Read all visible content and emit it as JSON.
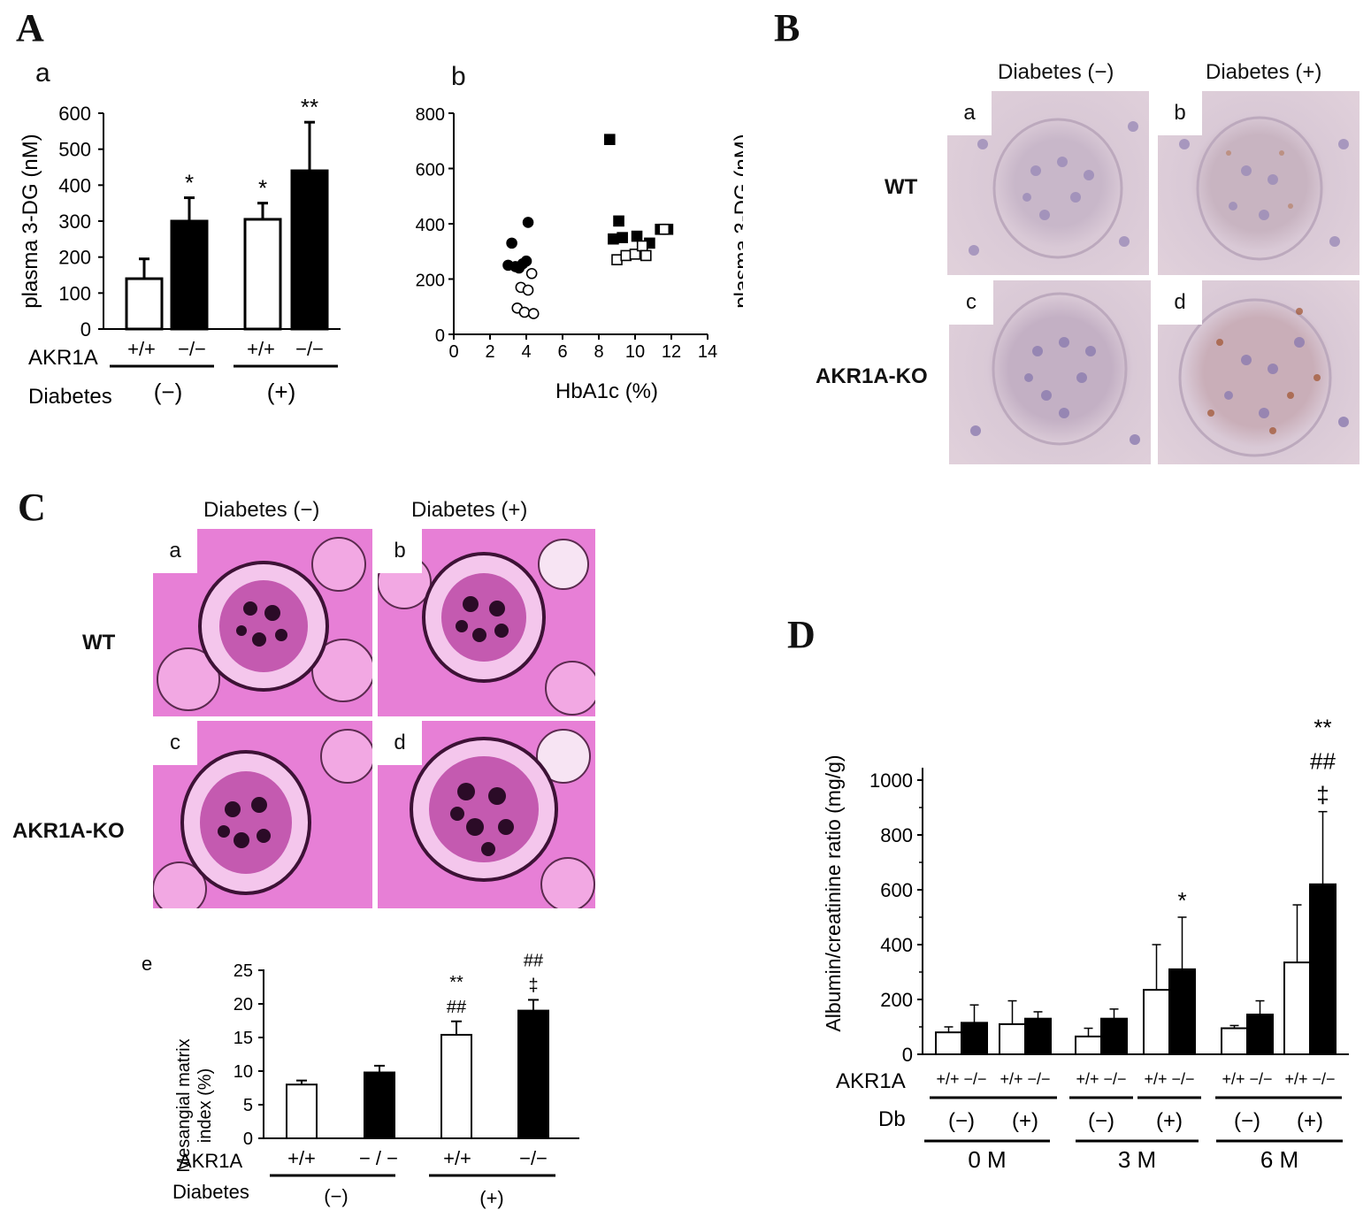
{
  "panels": {
    "A": "A",
    "B": "B",
    "C": "C",
    "D": "D"
  },
  "panelA": {
    "a": {
      "sublabel": "a",
      "ylabel": "plasma 3-DG (nM)",
      "row_akr": "AKR1A",
      "row_diab": "Diabetes",
      "akr_labels": [
        "+/+",
        "−/−",
        "+/+",
        "−/−"
      ],
      "diab_labels": [
        "(−)",
        "(+)"
      ],
      "yticks": [
        "0",
        "100",
        "200",
        "300",
        "400",
        "500",
        "600"
      ]
    },
    "b": {
      "sublabel": "b",
      "ylabel": "plasma 3-DG (nM)",
      "xlabel": "HbA1c (%)",
      "xticks": [
        "0",
        "2",
        "4",
        "6",
        "8",
        "10",
        "12",
        "14"
      ],
      "yticks": [
        "0",
        "200",
        "400",
        "600",
        "800"
      ]
    }
  },
  "panelB": {
    "col_labels": [
      "Diabetes (−)",
      "Diabetes (+)"
    ],
    "row_labels": [
      "WT",
      "AKR1A-KO"
    ],
    "tags": [
      "a",
      "b",
      "c",
      "d"
    ]
  },
  "panelC": {
    "col_labels": [
      "Diabetes (−)",
      "Diabetes (+)"
    ],
    "row_labels": [
      "WT",
      "AKR1A-KO"
    ],
    "tags": [
      "a",
      "b",
      "c",
      "d"
    ],
    "e": {
      "sublabel": "e",
      "ylabel1": "Mesangial matrix",
      "ylabel2": "index (%)",
      "row_akr": "AKR1A",
      "row_diab": "Diabetes",
      "akr_labels": [
        "+/+",
        "− / −",
        "+/+",
        "−/−"
      ],
      "diab_labels": [
        "(−)",
        "(+)"
      ],
      "yticks": [
        "0",
        "5",
        "10",
        "15",
        "20",
        "25"
      ]
    }
  },
  "panelD": {
    "ylabel": "Albumin/creatinine ratio (mg/g)",
    "row_akr": "AKR1A",
    "row_db": "Db",
    "db_labels": [
      "(−)",
      "(+)",
      "(−)",
      "(+)",
      "(−)",
      "(+)"
    ],
    "time_labels": [
      "0 M",
      "3 M",
      "6 M"
    ],
    "yticks": [
      "0",
      "200",
      "400",
      "600",
      "800",
      "1000"
    ],
    "pair_label": "+/+ −/−"
  },
  "chart_data": [
    {
      "id": "A-a",
      "type": "bar",
      "title": "",
      "ylabel": "plasma 3-DG (nM)",
      "ylim": [
        0,
        600
      ],
      "categories": [
        "+/+ (−)",
        "−/− (−)",
        "+/+ (+)",
        "−/− (+)"
      ],
      "values": [
        140,
        300,
        305,
        440
      ],
      "errors": [
        55,
        65,
        45,
        135
      ],
      "fills": [
        "white",
        "black",
        "white",
        "black"
      ],
      "annotations": [
        "",
        "*",
        "*",
        "**"
      ]
    },
    {
      "id": "A-b",
      "type": "scatter",
      "xlabel": "HbA1c (%)",
      "ylabel": "plasma 3-DG (nM)",
      "xlim": [
        0,
        14
      ],
      "ylim": [
        0,
        800
      ],
      "series": [
        {
          "marker": "filled-circle",
          "points": [
            [
              3.0,
              250
            ],
            [
              3.2,
              330
            ],
            [
              3.4,
              245
            ],
            [
              3.6,
              240
            ],
            [
              3.8,
              255
            ],
            [
              4.0,
              265
            ],
            [
              4.1,
              405
            ]
          ]
        },
        {
          "marker": "open-circle",
          "points": [
            [
              3.7,
              170
            ],
            [
              4.1,
              160
            ],
            [
              4.3,
              220
            ],
            [
              3.5,
              95
            ],
            [
              3.9,
              80
            ],
            [
              4.4,
              75
            ]
          ]
        },
        {
          "marker": "filled-square",
          "points": [
            [
              8.6,
              705
            ],
            [
              8.8,
              345
            ],
            [
              9.1,
              410
            ],
            [
              9.3,
              350
            ],
            [
              10.1,
              355
            ],
            [
              10.8,
              330
            ],
            [
              11.4,
              380
            ],
            [
              11.8,
              380
            ]
          ]
        },
        {
          "marker": "open-square",
          "points": [
            [
              9.0,
              270
            ],
            [
              9.5,
              285
            ],
            [
              10.0,
              290
            ],
            [
              10.4,
              320
            ],
            [
              10.6,
              285
            ],
            [
              11.6,
              380
            ]
          ]
        }
      ]
    },
    {
      "id": "C-e",
      "type": "bar",
      "ylabel": "Mesangial matrix index (%)",
      "ylim": [
        0,
        25
      ],
      "categories": [
        "+/+ (−)",
        "−/− (−)",
        "+/+ (+)",
        "−/− (+)"
      ],
      "values": [
        8.0,
        9.8,
        15.4,
        19.0
      ],
      "errors": [
        0.6,
        1.0,
        2.0,
        1.6
      ],
      "fills": [
        "white",
        "black",
        "white",
        "black"
      ],
      "annotations": [
        [],
        [],
        [
          "**",
          "##"
        ],
        [
          "**",
          "##",
          "‡"
        ]
      ]
    },
    {
      "id": "D",
      "type": "bar",
      "ylabel": "Albumin/creatinine ratio (mg/g)",
      "ylim": [
        0,
        1000
      ],
      "groups": [
        {
          "time": "0 M",
          "db": "(−)",
          "values": [
            80,
            115
          ],
          "errors": [
            20,
            65
          ],
          "annotations": []
        },
        {
          "time": "0 M",
          "db": "(+)",
          "values": [
            110,
            130
          ],
          "errors": [
            85,
            25
          ],
          "annotations": []
        },
        {
          "time": "3 M",
          "db": "(−)",
          "values": [
            65,
            130
          ],
          "errors": [
            30,
            35
          ],
          "annotations": []
        },
        {
          "time": "3 M",
          "db": "(+)",
          "values": [
            235,
            310
          ],
          "errors": [
            165,
            190
          ],
          "annotations": [
            "*"
          ]
        },
        {
          "time": "6 M",
          "db": "(−)",
          "values": [
            95,
            145
          ],
          "errors": [
            10,
            50
          ],
          "annotations": []
        },
        {
          "time": "6 M",
          "db": "(+)",
          "values": [
            335,
            620
          ],
          "errors": [
            210,
            265
          ],
          "annotations": [
            "**",
            "##",
            "‡"
          ]
        }
      ]
    }
  ]
}
